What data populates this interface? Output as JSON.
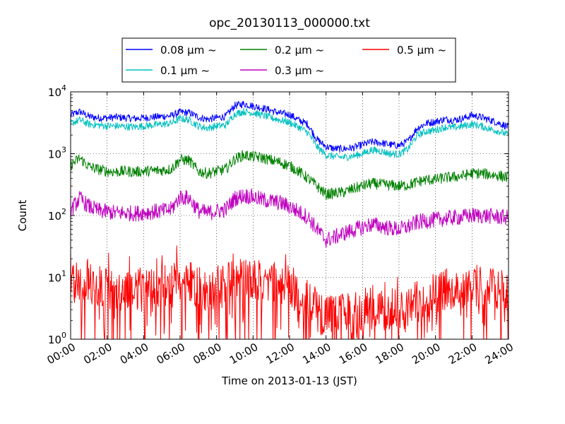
{
  "chart_data": {
    "type": "line",
    "title": "opc_20130113_000000.txt",
    "xlabel": "Time on 2013-01-13 (JST)",
    "ylabel": "Count",
    "yscale": "log",
    "ylim": [
      1,
      10000
    ],
    "xlim": [
      "00:00",
      "24:00"
    ],
    "grid": true,
    "legend_position": "top",
    "x_ticks": [
      "00:00",
      "02:00",
      "04:00",
      "06:00",
      "08:00",
      "10:00",
      "12:00",
      "14:00",
      "16:00",
      "18:00",
      "20:00",
      "22:00",
      "24:00"
    ],
    "y_ticks": [
      {
        "base": "10",
        "exp": "0"
      },
      {
        "base": "10",
        "exp": "1"
      },
      {
        "base": "10",
        "exp": "2"
      },
      {
        "base": "10",
        "exp": "3"
      },
      {
        "base": "10",
        "exp": "4"
      }
    ],
    "x_hours": [
      0,
      0.5,
      1,
      1.5,
      2,
      2.5,
      3,
      3.5,
      4,
      4.5,
      5,
      5.5,
      6,
      6.5,
      7,
      7.5,
      8,
      8.5,
      9,
      9.5,
      10,
      10.5,
      11,
      11.5,
      12,
      12.5,
      13,
      13.5,
      14,
      14.5,
      15,
      15.5,
      16,
      16.5,
      17,
      17.5,
      18,
      18.5,
      19,
      19.5,
      20,
      20.5,
      21,
      21.5,
      22,
      22.5,
      23,
      23.5,
      24
    ],
    "series": [
      {
        "name": "0.08 μm ~",
        "color": "#0000ff",
        "noise": 0.06,
        "values": [
          4200,
          4800,
          4000,
          3800,
          3800,
          3900,
          3800,
          3700,
          3800,
          3900,
          4000,
          4100,
          4700,
          4600,
          3900,
          3600,
          3800,
          4000,
          6000,
          6400,
          5900,
          5500,
          5000,
          4500,
          4300,
          3500,
          3000,
          1700,
          1300,
          1200,
          1200,
          1250,
          1400,
          1550,
          1500,
          1400,
          1350,
          1600,
          2600,
          3100,
          3300,
          3600,
          3500,
          3700,
          4200,
          3900,
          3500,
          3100,
          2700
        ]
      },
      {
        "name": "0.1 μm ~",
        "color": "#00bfbf",
        "noise": 0.06,
        "values": [
          3100,
          3500,
          3000,
          2900,
          2800,
          2800,
          2750,
          2700,
          2800,
          2900,
          3000,
          3100,
          3700,
          3500,
          2800,
          2600,
          2800,
          2900,
          4400,
          4800,
          4600,
          4200,
          3800,
          3500,
          3200,
          2700,
          2200,
          1300,
          950,
          900,
          870,
          920,
          1000,
          1150,
          1100,
          1000,
          980,
          1200,
          2000,
          2300,
          2400,
          2700,
          2650,
          2800,
          3000,
          2800,
          2500,
          2300,
          2000
        ]
      },
      {
        "name": "0.2 μm ~",
        "color": "#008000",
        "noise": 0.09,
        "values": [
          650,
          850,
          620,
          560,
          520,
          510,
          520,
          510,
          520,
          530,
          540,
          560,
          800,
          780,
          520,
          480,
          520,
          560,
          820,
          950,
          900,
          860,
          780,
          720,
          640,
          520,
          400,
          300,
          220,
          230,
          240,
          270,
          300,
          330,
          320,
          310,
          300,
          310,
          350,
          380,
          380,
          410,
          420,
          440,
          480,
          480,
          460,
          440,
          410
        ]
      },
      {
        "name": "0.3 μm ~",
        "color": "#bf00bf",
        "noise": 0.13,
        "values": [
          120,
          190,
          140,
          120,
          115,
          110,
          110,
          108,
          112,
          115,
          118,
          125,
          200,
          190,
          120,
          110,
          118,
          125,
          190,
          210,
          200,
          180,
          170,
          160,
          140,
          115,
          95,
          60,
          40,
          45,
          52,
          58,
          65,
          72,
          68,
          62,
          60,
          66,
          78,
          82,
          85,
          90,
          92,
          95,
          100,
          100,
          98,
          95,
          92
        ]
      },
      {
        "name": "0.5 μm ~",
        "color": "#ff0000",
        "noise": 0.35,
        "values": [
          8,
          9,
          8,
          7,
          7,
          6,
          7,
          7,
          6,
          6,
          7,
          8,
          9,
          9,
          7,
          6,
          7,
          8,
          9,
          10,
          10,
          9,
          9,
          8,
          7,
          6,
          4,
          3,
          2.5,
          2.5,
          2.5,
          2.8,
          3,
          3.2,
          3,
          3,
          3,
          3.2,
          4,
          5,
          6,
          6.5,
          7,
          7,
          7.5,
          7,
          6.5,
          6,
          5.5
        ]
      }
    ]
  }
}
